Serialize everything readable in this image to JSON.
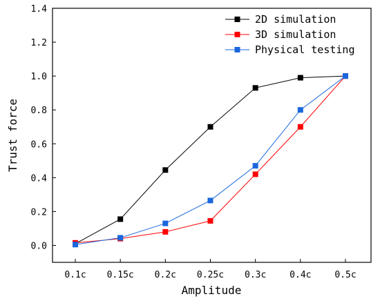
{
  "chart_data": {
    "type": "line",
    "xlabel": "Amplitude",
    "ylabel": "Trust force",
    "categories": [
      "0.1c",
      "0.15c",
      "0.2c",
      "0.25c",
      "0.3c",
      "0.4c",
      "0.5c"
    ],
    "ylim": [
      -0.1,
      1.4
    ],
    "yticks": [
      "0.0",
      "0.2",
      "0.4",
      "0.6",
      "0.8",
      "1.0",
      "1.2",
      "1.4"
    ],
    "grid": false,
    "legend_position": "top-right",
    "series": [
      {
        "name": "2D simulation",
        "color": "#000000",
        "values": [
          0.01,
          0.155,
          0.445,
          0.7,
          0.93,
          0.99,
          1.0
        ]
      },
      {
        "name": "3D simulation",
        "color": "#ff0000",
        "values": [
          0.015,
          0.04,
          0.08,
          0.145,
          0.42,
          0.7,
          1.0
        ]
      },
      {
        "name": "Physical testing",
        "color": "#1a66dd",
        "values": [
          0.005,
          0.045,
          0.13,
          0.265,
          0.47,
          0.8,
          1.0
        ]
      }
    ]
  }
}
